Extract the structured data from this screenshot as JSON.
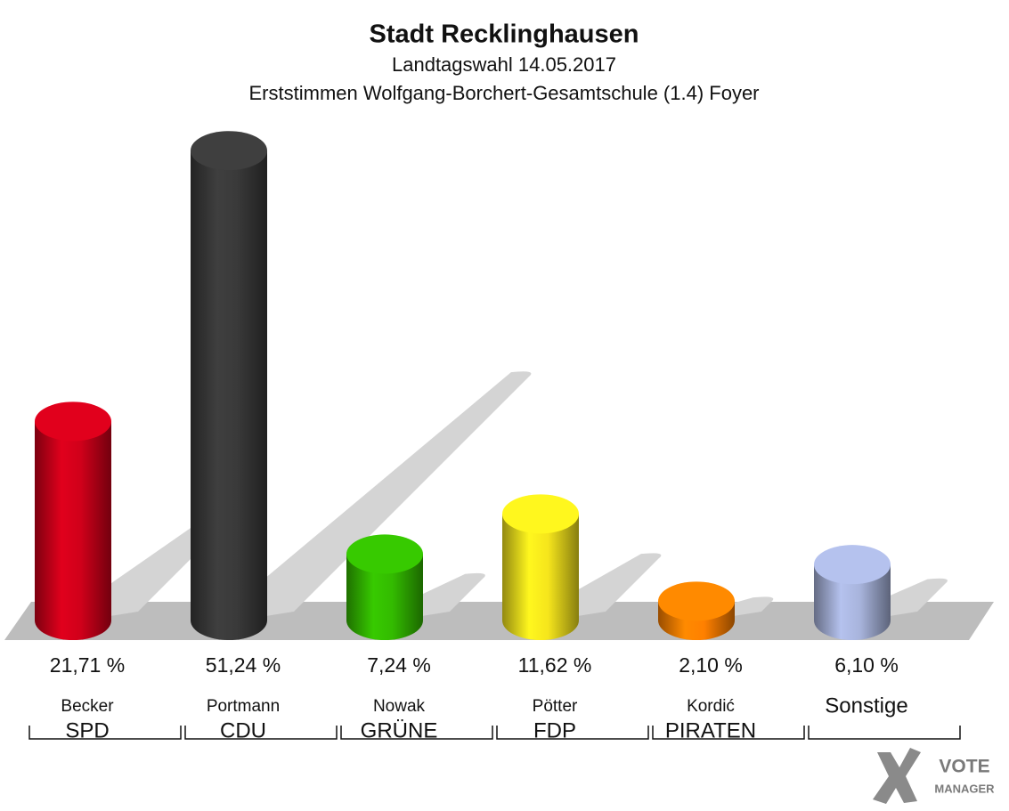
{
  "chart_data": {
    "type": "bar",
    "title": "Stadt Recklinghausen",
    "subtitle": [
      "Landtagswahl 14.05.2017",
      "Erststimmen Wolfgang-Borchert-Gesamtschule (1.4) Foyer"
    ],
    "categories": [
      "SPD",
      "CDU",
      "GRÜNE",
      "FDP",
      "PIRATEN",
      "Sonstige"
    ],
    "candidates": [
      "Becker",
      "Portmann",
      "Nowak",
      "Pötter",
      "Kordić",
      null
    ],
    "values": [
      21.71,
      51.24,
      7.24,
      11.62,
      2.1,
      6.1
    ],
    "value_labels": [
      "21,71 %",
      "51,24 %",
      "7,24 %",
      "11,62 %",
      "2,10 %",
      "6,10 %"
    ],
    "colors": [
      "#d0001a",
      "#3a3a3a",
      "#33bb00",
      "#f5e51c",
      "#ff8000",
      "#a8b4dc"
    ],
    "logo": [
      "VOTE",
      "MANAGER"
    ]
  }
}
